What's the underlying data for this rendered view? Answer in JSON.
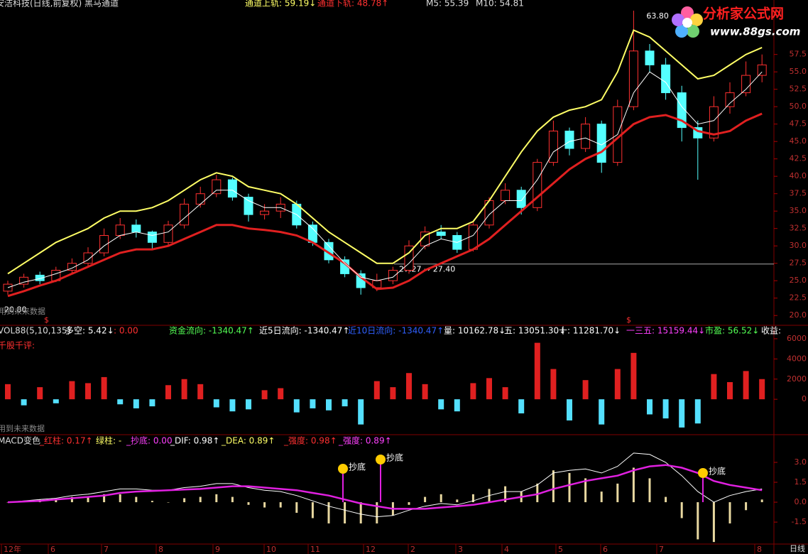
{
  "logo": {
    "title": "分析家公式网",
    "url": "www.88gs.com"
  },
  "chart_data": [
    {
      "type": "candlestick",
      "title": "安洁科技(日线,前复权) 黑马通道",
      "legend": [
        {
          "text": "通道上轨: 59.19↓",
          "color": "#ffff66"
        },
        {
          "text": "通道下轨: 48.78↑",
          "color": "#ff3030"
        },
        {
          "text": "M5: 55.39",
          "color": "#dddddd"
        },
        {
          "text": "M10: 54.81",
          "color": "#dddddd"
        }
      ],
      "up_color": "#ff3030",
      "down_color": "#54ffff",
      "open": [
        23.5,
        24.5,
        25.8,
        25,
        26.5,
        27.5,
        29,
        31.5,
        33,
        32,
        30.5,
        33,
        36,
        37.5,
        39.5,
        37,
        34.5,
        35,
        36,
        33,
        30.5,
        28,
        26,
        24,
        25,
        26.5,
        30,
        32,
        31.5,
        29.5,
        33,
        36.5,
        38,
        35.5,
        42,
        46.5,
        44,
        47.5,
        42,
        50,
        58,
        56,
        52,
        47,
        45.5,
        50,
        52,
        54.5
      ],
      "close": [
        24.5,
        25.5,
        25,
        26.5,
        27.5,
        29,
        31.5,
        33,
        32,
        30.5,
        33,
        36,
        37.5,
        39.5,
        37,
        34.5,
        35,
        36,
        33,
        30.5,
        28,
        26,
        24,
        25,
        26.5,
        30,
        32,
        31.5,
        29.5,
        33,
        36.5,
        38,
        35.5,
        42,
        46.5,
        44,
        47.5,
        42,
        50,
        58,
        56,
        52,
        47,
        45.5,
        50,
        52,
        54.5,
        56
      ],
      "high": [
        25,
        26,
        26.3,
        27,
        28.2,
        29.8,
        32.5,
        34,
        33.8,
        32.2,
        33.6,
        36.8,
        38.5,
        40.2,
        39.8,
        37.5,
        36,
        37,
        36.5,
        33.5,
        31,
        28.5,
        26.5,
        26,
        27,
        30.8,
        32.8,
        33,
        32,
        33.5,
        37,
        39,
        38.5,
        42.5,
        48,
        47,
        48.5,
        48,
        51,
        63.8,
        59,
        57,
        53,
        48,
        51.5,
        53.5,
        56.5,
        57.5
      ],
      "low": [
        23,
        24,
        24.5,
        24.8,
        26,
        27,
        28.5,
        31,
        31.2,
        29.5,
        30,
        32.5,
        35.5,
        37,
        36.5,
        33.5,
        33.8,
        34,
        32.5,
        30,
        27.5,
        25.5,
        23,
        23.5,
        24.5,
        26,
        29.5,
        31,
        29,
        29.2,
        32.5,
        36,
        34.5,
        35,
        41.5,
        43,
        43.5,
        40.5,
        41.5,
        49.5,
        55,
        51,
        45,
        39.5,
        45,
        49,
        51.5,
        53.5
      ],
      "lines": [
        {
          "color": "#ffff66",
          "width": 2,
          "values": [
            26,
            27.5,
            29,
            30.5,
            31.5,
            32.5,
            34,
            35,
            35,
            35.5,
            36.5,
            38,
            39.5,
            40.5,
            40,
            38.5,
            38,
            37.5,
            36,
            34,
            32,
            30.5,
            29,
            27.5,
            27.5,
            29,
            31.5,
            32.5,
            32.5,
            33.5,
            36.5,
            40,
            43.5,
            46.5,
            48.5,
            49.5,
            50,
            51,
            55,
            61,
            60,
            58,
            56,
            54,
            54.5,
            56,
            57.5,
            58.5
          ]
        },
        {
          "color": "#e02020",
          "width": 3,
          "values": [
            22.8,
            23.5,
            24.3,
            25,
            26,
            27,
            28,
            29,
            29.5,
            29.5,
            30,
            31,
            32,
            33,
            33,
            32.5,
            32.3,
            32,
            31.5,
            30.5,
            29,
            27.5,
            25.5,
            23.8,
            24,
            25,
            26.5,
            27.5,
            28.5,
            29.5,
            31,
            33,
            35,
            37,
            39,
            41,
            42.5,
            43.5,
            45.5,
            47.5,
            48.5,
            48.8,
            48,
            46.5,
            46,
            46.5,
            48,
            49
          ]
        },
        {
          "color": "#ffffff",
          "width": 1,
          "values": [
            24,
            24.8,
            25.3,
            26,
            26.8,
            28,
            30,
            31.5,
            32,
            31.5,
            32,
            34,
            36,
            38,
            38,
            36.5,
            35.5,
            35.5,
            34.5,
            32.5,
            30,
            27.5,
            25.5,
            25,
            25.5,
            27.5,
            30,
            31,
            30.5,
            31.5,
            34.5,
            36.5,
            36.5,
            39.5,
            43.5,
            45,
            45.5,
            44.5,
            46,
            52,
            55,
            53.5,
            50,
            47.5,
            48,
            50.5,
            52.5,
            55
          ]
        }
      ],
      "ylim": [
        18.9,
        64.1
      ],
      "yticks": [
        {
          "value": 20,
          "label": "20.0"
        },
        {
          "value": 22.5,
          "label": "22.5"
        },
        {
          "value": 25,
          "label": "25.0"
        },
        {
          "value": 27.5,
          "label": "27.5"
        },
        {
          "value": 30,
          "label": "30.0"
        },
        {
          "value": 32.5,
          "label": "32.5"
        },
        {
          "value": 35,
          "label": "35.0"
        },
        {
          "value": 37.5,
          "label": "37.5"
        },
        {
          "value": 40,
          "label": "40.0"
        },
        {
          "value": 42.5,
          "label": "42.5"
        },
        {
          "value": 45,
          "label": "45.0"
        },
        {
          "value": 47.5,
          "label": "47.5"
        },
        {
          "value": 50,
          "label": "50.0"
        },
        {
          "value": 52.5,
          "label": "52.5"
        },
        {
          "value": 55,
          "label": "55.0"
        },
        {
          "value": 57.5,
          "label": "57.5"
        }
      ],
      "peak": {
        "value": 63.8,
        "label": "63.80"
      },
      "low_mark": {
        "value": 20.8,
        "label": "20.80"
      },
      "level": {
        "value": 27.4,
        "label": "27.27 → 27.40"
      },
      "notes": [
        "用到未来数据",
        "$",
        "$"
      ]
    },
    {
      "type": "bar",
      "title": "VOL88(5,10,135)",
      "legend": [
        {
          "text": "多空: 5.42↓",
          "color": "#ffffff"
        },
        {
          "text": ": 0.00",
          "color": "#ff3030"
        },
        {
          "text": "资金流向: -1340.47↑",
          "color": "#54ff54"
        },
        {
          "text": "近5日流向: -1340.47↑",
          "color": "#ffffff"
        },
        {
          "text": "近10日流向: -1340.47↑",
          "color": "#3060ff"
        },
        {
          "text": "量: 10162.78↓",
          "color": "#ffffff"
        },
        {
          "text": "五: 13051.30↓",
          "color": "#ffffff"
        },
        {
          "text": "十: 11281.70↓",
          "color": "#ffffff"
        },
        {
          "text": "一三五: 15159.44↓",
          "color": "#ff40ff"
        },
        {
          "text": "市盈: 56.52↓",
          "color": "#54ff54"
        },
        {
          "text": "收益:",
          "color": "#ffffff"
        }
      ],
      "notes": [
        "千股千评:",
        "用到未来数据"
      ],
      "up_color": "#e02020",
      "down_color": "#54e0ff",
      "values": [
        1500,
        -600,
        1200,
        -400,
        1800,
        1600,
        2200,
        -500,
        -900,
        -700,
        1400,
        2000,
        1500,
        -800,
        -1200,
        -1000,
        900,
        1100,
        -1300,
        -900,
        -1100,
        -700,
        -2500,
        1800,
        1200,
        2600,
        1500,
        -1000,
        -1200,
        1600,
        2100,
        1200,
        -1400,
        5600,
        3000,
        -2100,
        1900,
        -2500,
        3000,
        4600,
        -1500,
        -1900,
        -2800,
        -2400,
        2500,
        1700,
        2800,
        2000
      ],
      "ylim": [
        -3370,
        6490
      ],
      "yticks": [
        0,
        2000,
        4000,
        6000
      ]
    },
    {
      "type": "macd",
      "title": "MACD变色",
      "legend": [
        {
          "text": "_红柱: 0.17↑",
          "color": "#ff3030"
        },
        {
          "text": "绿柱: -",
          "color": "#ffff66"
        },
        {
          "text": "_抄底: 0.00",
          "color": "#ff40ff"
        },
        {
          "text": "_DIF: 0.98↑",
          "color": "#ffffff"
        },
        {
          "text": "_DEA: 0.89↑",
          "color": "#ffff66"
        },
        {
          "text": "_强度: 0.98↑",
          "color": "#ff3030"
        },
        {
          "text": "_强度: 0.89↑",
          "color": "#ff40ff"
        }
      ],
      "notes": [
        "抄底",
        "抄底",
        "抄底"
      ],
      "hist_color": "#e8d8a0",
      "hist": [
        0,
        0.1,
        0.2,
        0.2,
        0.4,
        0.4,
        0.6,
        0.6,
        0.4,
        0.1,
        0,
        0.3,
        0.4,
        0.6,
        0.4,
        -0.2,
        -0.4,
        -0.4,
        -0.8,
        -1.2,
        -1.6,
        -1.6,
        -1.6,
        -1.6,
        -1,
        -0.2,
        0.4,
        0.6,
        0.2,
        0.6,
        1,
        1.2,
        0.8,
        1.4,
        2.4,
        2.2,
        1.8,
        0.8,
        1.4,
        2.6,
        1.8,
        0.4,
        -1.2,
        -2.8,
        -3,
        -1.6,
        -0.6,
        0.2
      ],
      "series": [
        {
          "color": "#ffffff",
          "values": [
            0,
            0.1,
            0.2,
            0.3,
            0.5,
            0.6,
            0.8,
            1,
            1,
            0.9,
            0.9,
            1.1,
            1.2,
            1.4,
            1.4,
            1.1,
            0.9,
            0.8,
            0.5,
            0.1,
            -0.3,
            -0.6,
            -0.9,
            -1.1,
            -1,
            -0.6,
            -0.3,
            -0.1,
            -0.2,
            0.1,
            0.5,
            0.8,
            0.8,
            1.3,
            2.2,
            2.4,
            2.5,
            2.2,
            2.7,
            3.7,
            3.6,
            3,
            2,
            0.8,
            0,
            0.5,
            0.8,
            1
          ]
        },
        {
          "color": "#e020e0",
          "values": [
            0,
            0.05,
            0.1,
            0.2,
            0.3,
            0.4,
            0.5,
            0.7,
            0.8,
            0.85,
            0.9,
            0.95,
            1,
            1.1,
            1.2,
            1.2,
            1.1,
            1,
            0.9,
            0.7,
            0.5,
            0.2,
            -0.1,
            -0.3,
            -0.5,
            -0.5,
            -0.5,
            -0.4,
            -0.3,
            -0.2,
            0,
            0.2,
            0.4,
            0.6,
            1,
            1.3,
            1.6,
            1.8,
            2,
            2.4,
            2.7,
            2.8,
            2.6,
            2.2,
            1.6,
            1.3,
            1.1,
            0.9
          ]
        }
      ],
      "ylim": [
        -3.1,
        4.23
      ],
      "yticks": [
        {
          "value": 3,
          "label": "3.0"
        },
        {
          "value": 1.5,
          "label": "1.5"
        },
        {
          "value": 0,
          "label": "0.0"
        },
        {
          "value": -1.5,
          "label": "-1.5"
        }
      ],
      "xlabels": [
        "12年",
        "6",
        "7",
        "8",
        "9",
        "10",
        "11",
        "12",
        "2",
        "3",
        "4",
        "5",
        "6",
        "7",
        "8"
      ],
      "period": "日线"
    }
  ]
}
